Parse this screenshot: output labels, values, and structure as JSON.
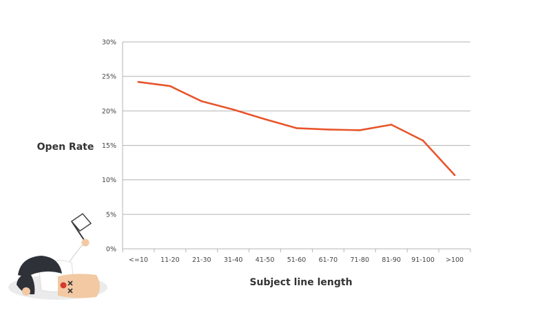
{
  "colors": {
    "line": "#e8542a",
    "grid": "#b3b3b3",
    "text": "#444444"
  },
  "chart_data": {
    "type": "line",
    "categories": [
      "<=10",
      "11-20",
      "21-30",
      "31-40",
      "41-50",
      "51-60",
      "61-70",
      "71-80",
      "81-90",
      "91-100",
      ">100"
    ],
    "series": [
      {
        "values": [
          24.2,
          23.6,
          21.4,
          20.2,
          18.8,
          17.5,
          17.3,
          17.2,
          18.0,
          15.7,
          10.7
        ]
      }
    ],
    "ylim": [
      0,
      30
    ],
    "yticks": [
      0,
      5,
      10,
      15,
      20,
      25,
      30
    ],
    "ytick_labels": [
      "0%",
      "5%",
      "10%",
      "15%",
      "20%",
      "25%",
      "30%"
    ],
    "xlabel": "Subject line length",
    "ylabel": "Open Rate",
    "grid": true
  },
  "illustration": {
    "icon": "knocked-out-person-waving-white-flag"
  }
}
